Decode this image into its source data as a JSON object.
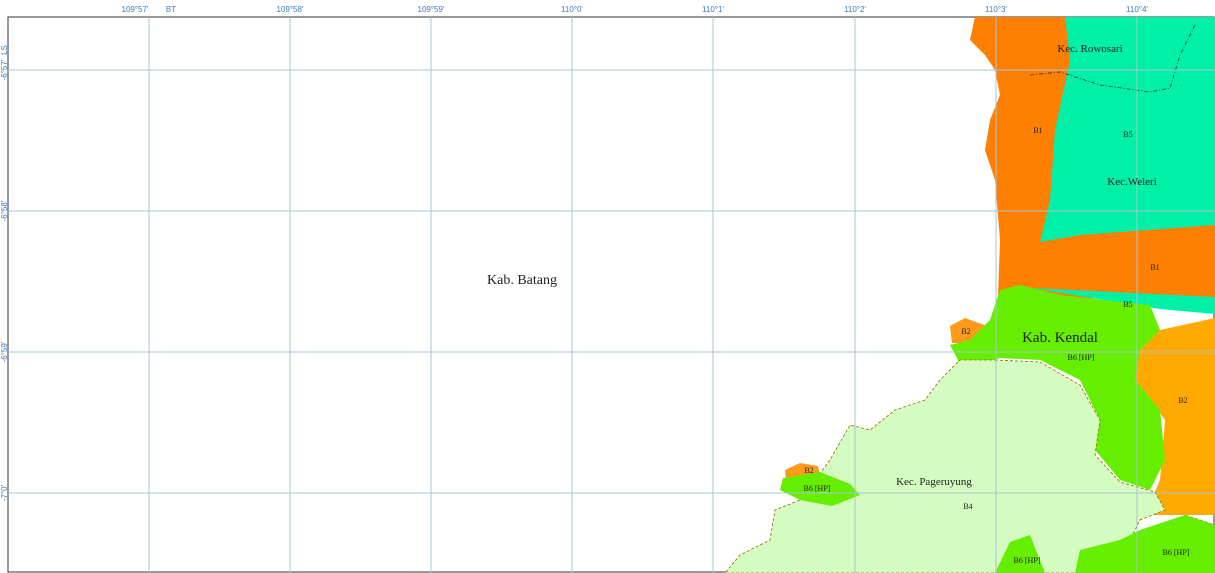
{
  "map": {
    "top_labels": [
      "109°57'",
      "BT",
      "109°58'",
      "109°59'",
      "110°0'",
      "110°1'",
      "110°2'",
      "110°3'",
      "110°4'"
    ],
    "left_labels": [
      "LS",
      "-6°57'",
      "-6°58'",
      "-6°59'",
      "-7°0'"
    ],
    "regions": [
      "Kec. Rowosari",
      "B1",
      "B5",
      "Kec.Weleri",
      "B1",
      "Kab. Batang",
      "B5",
      "B2",
      "Kab. Kendal",
      "B6 [HP]",
      "B2",
      "B2",
      "B6 [HP]",
      "Kec. Pageruyung",
      "B4",
      "B6 [HP]",
      "B6 [HP]"
    ]
  }
}
